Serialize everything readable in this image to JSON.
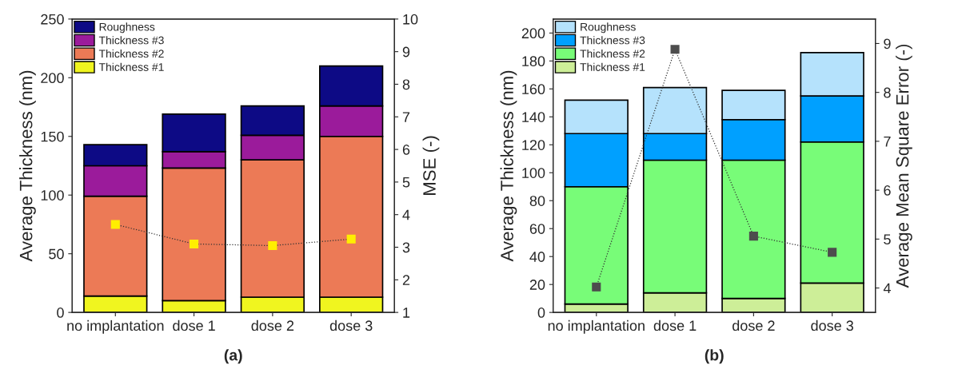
{
  "chart_data": [
    {
      "type": "bar",
      "stacked": true,
      "xlabel": "(a)",
      "ylabel": "Average Thickness (nm)",
      "y2label": "MSE (-)",
      "categories": [
        "no implantation",
        "dose 1",
        "dose 2",
        "dose 3"
      ],
      "series": [
        {
          "name": "Thickness #1",
          "color": "#f0f51f",
          "values": [
            14,
            10,
            13,
            13
          ]
        },
        {
          "name": "Thickness #2",
          "color": "#ec7a56",
          "values": [
            85,
            113,
            117,
            137
          ]
        },
        {
          "name": "Thickness #3",
          "color": "#9b1b9b",
          "values": [
            26,
            14,
            21,
            26
          ]
        },
        {
          "name": "Roughness",
          "color": "#0d0a85",
          "values": [
            18,
            32,
            25,
            34
          ]
        },
        {
          "type": "line",
          "axis": "y2",
          "color": "#ffee00",
          "marker": "square",
          "line_style": "dotted",
          "values": [
            3.7,
            3.1,
            3.05,
            3.25
          ]
        }
      ],
      "ylim": [
        0,
        250
      ],
      "yticks": [
        0,
        50,
        100,
        150,
        200,
        250
      ],
      "y2lim": [
        1,
        10
      ],
      "y2ticks": [
        1,
        2,
        3,
        4,
        5,
        6,
        7,
        8,
        9,
        10
      ],
      "legend": "top left",
      "grid": false
    },
    {
      "type": "bar",
      "stacked": true,
      "xlabel": "(b)",
      "ylabel": "Average Thickness (nm)",
      "y2label": "Average Mean Square Error (-)",
      "categories": [
        "no implantation",
        "dose 1",
        "dose 2",
        "dose 3"
      ],
      "series": [
        {
          "name": "Thickness #1",
          "color": "#cdee98",
          "values": [
            6,
            14,
            10,
            21
          ]
        },
        {
          "name": "Thickness #2",
          "color": "#78fc78",
          "values": [
            84,
            95,
            99,
            101
          ]
        },
        {
          "name": "Thickness #3",
          "color": "#00a0ff",
          "values": [
            38,
            19,
            29,
            33
          ]
        },
        {
          "name": "Roughness",
          "color": "#b5e2fc",
          "values": [
            24,
            33,
            21,
            31
          ]
        },
        {
          "type": "line",
          "axis": "y2",
          "color": "#4d4d4d",
          "marker": "square",
          "line_style": "dotted",
          "values": [
            4.02,
            8.88,
            5.06,
            4.73
          ]
        }
      ],
      "ylim": [
        0,
        210
      ],
      "yticks": [
        0,
        20,
        40,
        60,
        80,
        100,
        120,
        140,
        160,
        180,
        200
      ],
      "y2lim": [
        3.5,
        9.5
      ],
      "y2ticks": [
        4,
        5,
        6,
        7,
        8,
        9
      ],
      "legend": "top left",
      "grid": false
    }
  ]
}
